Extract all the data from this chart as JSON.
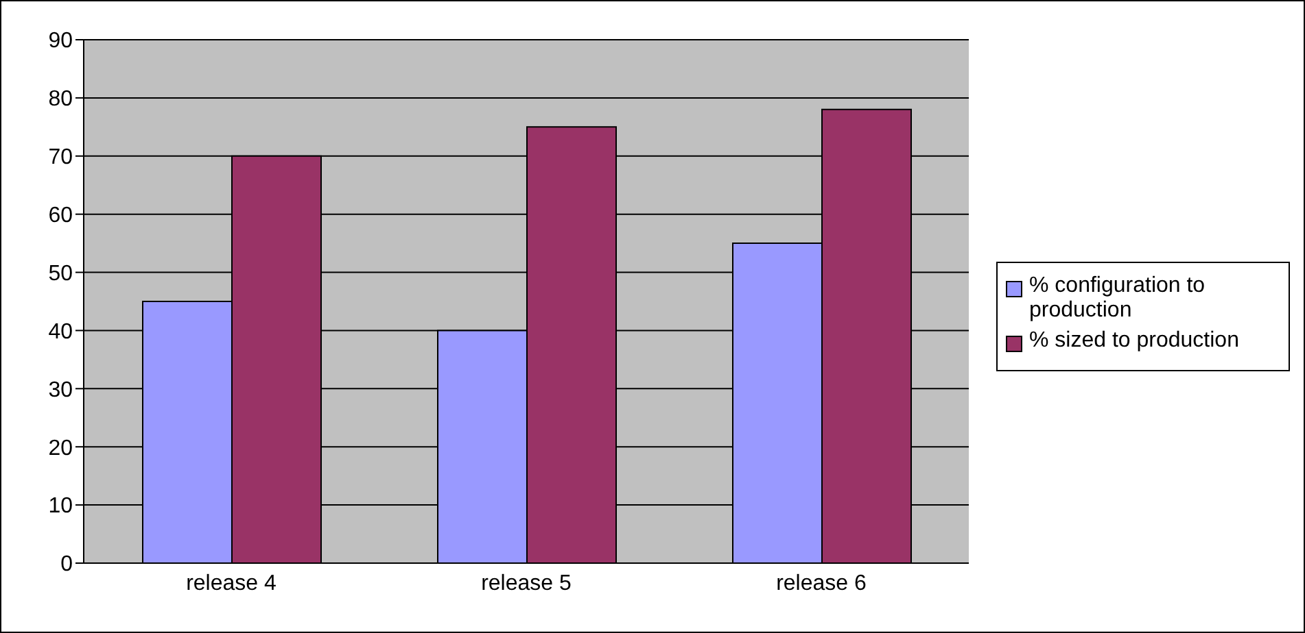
{
  "chart_data": {
    "type": "bar",
    "categories": [
      "release 4",
      "release 5",
      "release 6"
    ],
    "series": [
      {
        "name": "% configuration to production",
        "color": "#9999ff",
        "values": [
          45,
          40,
          55
        ]
      },
      {
        "name": "% sized to production",
        "color": "#993366",
        "values": [
          70,
          75,
          78
        ]
      }
    ],
    "ylim": [
      0,
      90
    ],
    "yticks": [
      0,
      10,
      20,
      30,
      40,
      50,
      60,
      70,
      80,
      90
    ],
    "grid": "y",
    "legend": "right"
  }
}
